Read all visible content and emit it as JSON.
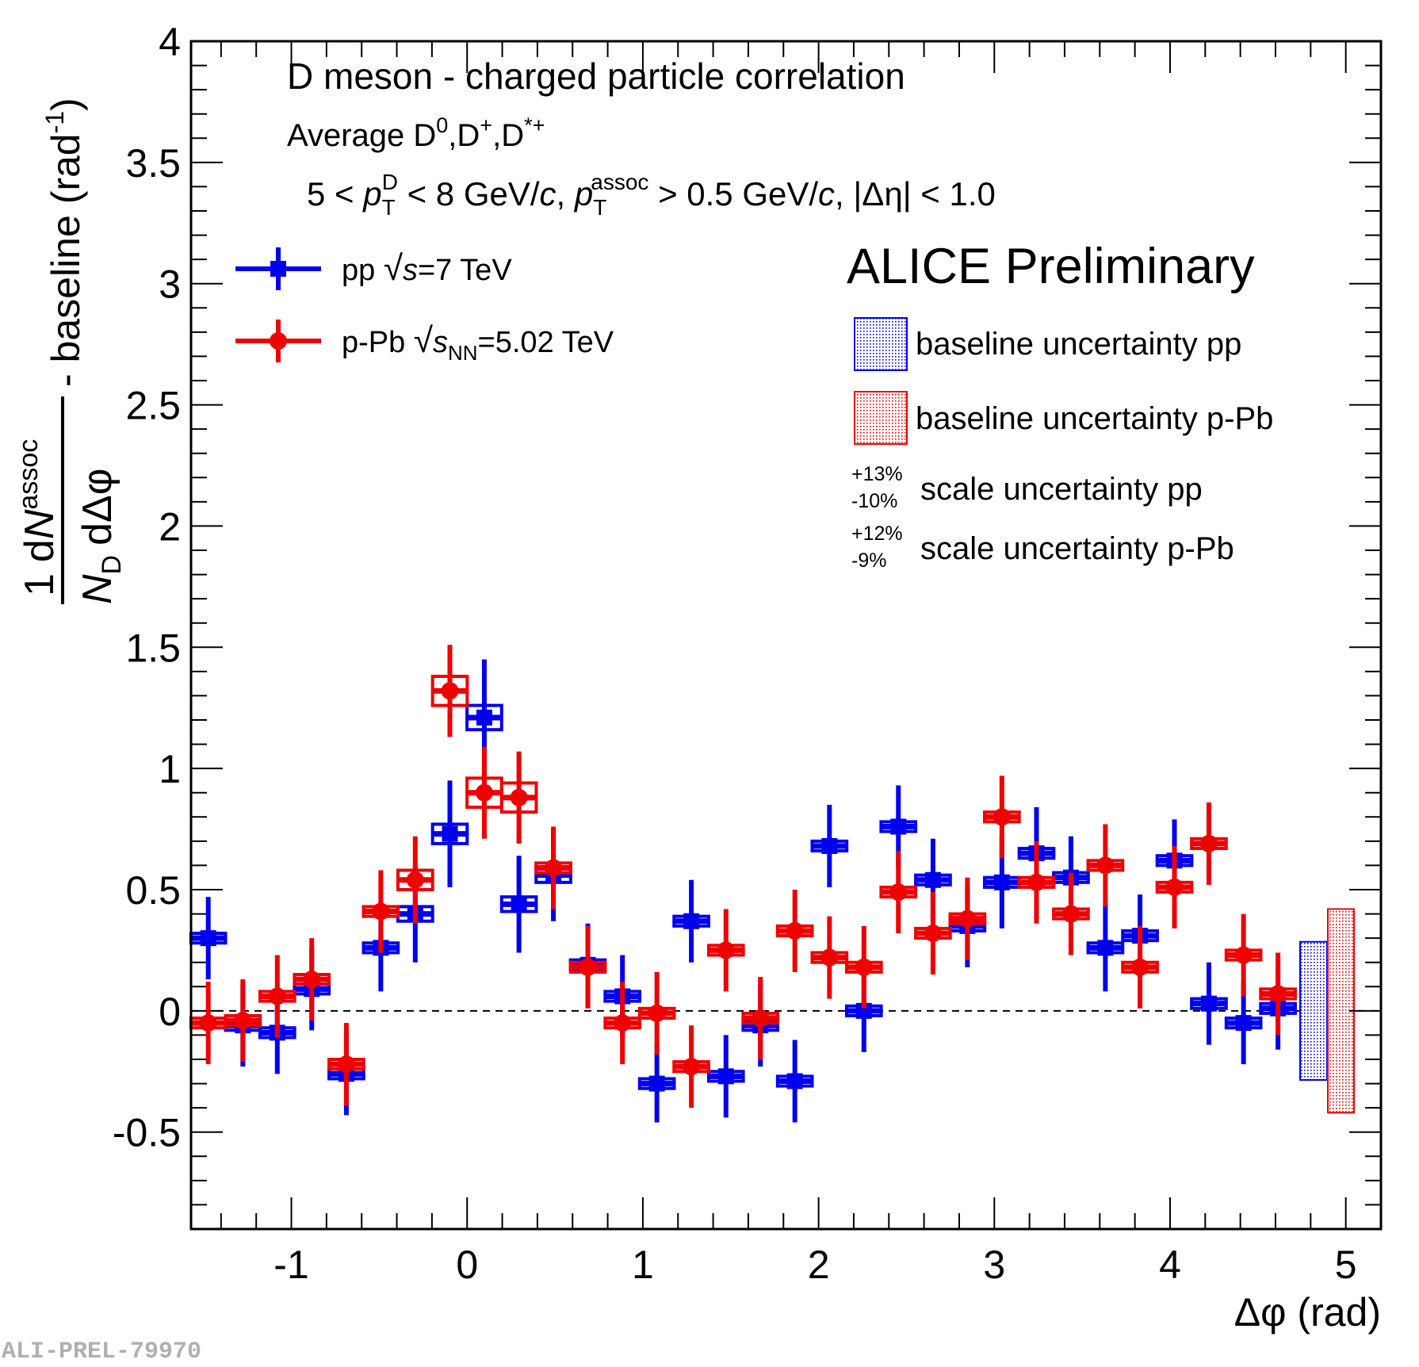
{
  "chart_data": {
    "type": "errorbar",
    "header": "D meson  - charged particle correlation",
    "species_parts": [
      "Average D",
      "0",
      ",D",
      "+",
      ",D",
      "*+"
    ],
    "cuts_parts": [
      "5 < ",
      "p",
      "T",
      "D",
      " < 8 GeV/",
      "c",
      ", ",
      "p",
      "T",
      "assoc",
      " > 0.5 GeV/",
      "c",
      ", |Δη| < 1.0"
    ],
    "experiment": "ALICE Preliminary",
    "watermark": "ALI-PREL-79970",
    "xlabel": "Δφ (rad)",
    "ylabel": {
      "numerator": [
        "1",
        "d",
        "N",
        "assoc"
      ],
      "denominator": [
        "N",
        "D",
        "dΔφ"
      ],
      "rest": [
        "- baseline (rad",
        "-1",
        ")"
      ]
    },
    "xlim": [
      -1.5708,
      5.2
    ],
    "ylim": [
      -0.9,
      4
    ],
    "xticks": [
      -1,
      0,
      1,
      2,
      3,
      4,
      5
    ],
    "yticks": [
      -0.5,
      0,
      0.5,
      1,
      1.5,
      2,
      2.5,
      3,
      3.5,
      4
    ],
    "xminor": [
      -1.4,
      -1.2,
      -0.8,
      -0.6,
      -0.4,
      -0.2,
      0.2,
      0.4,
      0.6,
      0.8,
      1.2,
      1.4,
      1.6,
      1.8,
      2.2,
      2.4,
      2.6,
      2.8,
      3.2,
      3.4,
      3.6,
      3.8,
      4.2,
      4.4,
      4.6,
      4.8
    ],
    "yminor": [
      -0.8,
      -0.7,
      -0.6,
      -0.4,
      -0.3,
      -0.2,
      -0.1,
      0.1,
      0.2,
      0.3,
      0.4,
      0.6,
      0.7,
      0.8,
      0.9,
      1.1,
      1.2,
      1.3,
      1.4,
      1.6,
      1.7,
      1.8,
      1.9,
      2.1,
      2.2,
      2.3,
      2.4,
      2.6,
      2.7,
      2.8,
      2.9,
      3.1,
      3.2,
      3.3,
      3.4,
      3.6,
      3.7,
      3.8,
      3.9
    ],
    "x": [
      -1.473,
      -1.276,
      -1.08,
      -0.884,
      -0.687,
      -0.491,
      -0.295,
      -0.098,
      0.098,
      0.295,
      0.491,
      0.687,
      0.884,
      1.08,
      1.276,
      1.473,
      1.669,
      1.865,
      2.062,
      2.258,
      2.454,
      2.651,
      2.847,
      3.043,
      3.24,
      3.436,
      3.632,
      3.829,
      4.025,
      4.221,
      4.418,
      4.614
    ],
    "series": [
      {
        "name": [
          "pp ",
          "√",
          "s",
          "=7 TeV"
        ],
        "color": "#0000ee",
        "marker": "square",
        "values": [
          0.3,
          -0.06,
          -0.09,
          0.09,
          -0.26,
          0.26,
          0.4,
          0.73,
          1.21,
          0.44,
          0.56,
          0.19,
          0.06,
          -0.3,
          0.37,
          -0.27,
          -0.06,
          -0.29,
          0.68,
          0.0,
          0.76,
          0.54,
          0.35,
          0.53,
          0.65,
          0.55,
          0.26,
          0.31,
          0.62,
          0.03,
          -0.05,
          0.01
        ],
        "errors": [
          0.17,
          0.17,
          0.17,
          0.17,
          0.17,
          0.18,
          0.2,
          0.22,
          0.24,
          0.2,
          0.19,
          0.17,
          0.17,
          0.16,
          0.17,
          0.17,
          0.17,
          0.17,
          0.17,
          0.17,
          0.17,
          0.17,
          0.17,
          0.19,
          0.19,
          0.17,
          0.18,
          0.17,
          0.17,
          0.17,
          0.17,
          0.17
        ],
        "sys": [
          0.02,
          0.02,
          0.02,
          0.02,
          0.02,
          0.02,
          0.03,
          0.04,
          0.05,
          0.03,
          0.03,
          0.02,
          0.02,
          0.02,
          0.02,
          0.02,
          0.02,
          0.02,
          0.02,
          0.02,
          0.02,
          0.02,
          0.02,
          0.02,
          0.02,
          0.02,
          0.02,
          0.02,
          0.02,
          0.02,
          0.02,
          0.02
        ]
      },
      {
        "name": [
          "p-Pb ",
          "√",
          "s",
          "NN",
          "=5.02 TeV"
        ],
        "color": "#ee0000",
        "marker": "circle",
        "values": [
          -0.05,
          -0.04,
          0.06,
          0.13,
          -0.22,
          0.41,
          0.54,
          1.32,
          0.9,
          0.88,
          0.59,
          0.18,
          -0.05,
          -0.01,
          -0.23,
          0.25,
          -0.03,
          0.33,
          0.22,
          0.18,
          0.49,
          0.32,
          0.38,
          0.8,
          0.53,
          0.4,
          0.6,
          0.18,
          0.51,
          0.69,
          0.23,
          0.07
        ],
        "errors": [
          0.17,
          0.17,
          0.17,
          0.17,
          0.17,
          0.17,
          0.18,
          0.19,
          0.19,
          0.19,
          0.17,
          0.17,
          0.17,
          0.17,
          0.17,
          0.17,
          0.17,
          0.17,
          0.17,
          0.17,
          0.17,
          0.17,
          0.17,
          0.17,
          0.17,
          0.17,
          0.17,
          0.17,
          0.17,
          0.17,
          0.17,
          0.17
        ],
        "sys": [
          0.02,
          0.02,
          0.02,
          0.02,
          0.02,
          0.02,
          0.04,
          0.06,
          0.06,
          0.06,
          0.02,
          0.02,
          0.02,
          0.02,
          0.02,
          0.02,
          0.02,
          0.02,
          0.02,
          0.02,
          0.02,
          0.02,
          0.02,
          0.02,
          0.02,
          0.02,
          0.02,
          0.02,
          0.02,
          0.02,
          0.02,
          0.02
        ]
      }
    ],
    "baseline_uncertainty": [
      {
        "label": "baseline uncertainty pp",
        "value": 0.285,
        "color": "#0000ee"
      },
      {
        "label": "baseline uncertainty p-Pb",
        "value": 0.42,
        "color": "#ee0000"
      }
    ],
    "scale_uncertainty": [
      {
        "plus": "+13%",
        "minus": "-10%",
        "label": "scale uncertainty pp"
      },
      {
        "plus": "+12%",
        "minus": "-9%",
        "label": "scale uncertainty p-Pb"
      }
    ]
  }
}
